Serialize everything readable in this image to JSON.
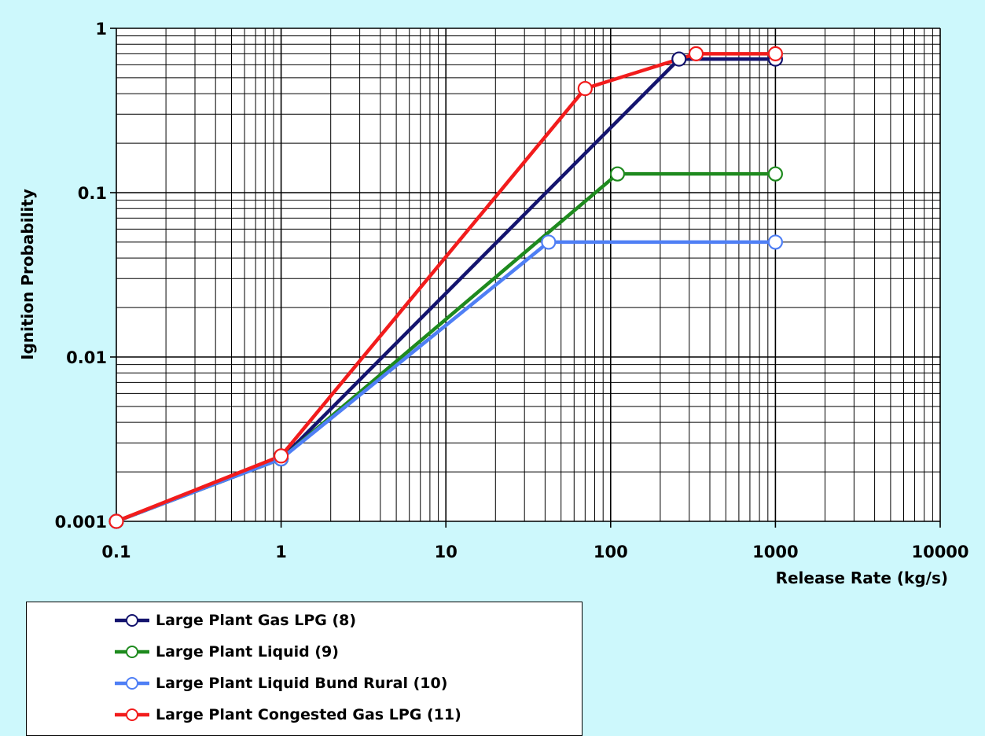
{
  "chart_data": {
    "type": "line",
    "xscale": "log",
    "yscale": "log",
    "xlim": [
      0.1,
      10000
    ],
    "ylim": [
      0.001,
      1
    ],
    "xlabel": "Release Rate (kg/s)",
    "ylabel": "Ignition Probability",
    "grid": true,
    "legend_position": "bottom-left",
    "xticks": [
      "0.1",
      "1",
      "10",
      "100",
      "1000",
      "10000"
    ],
    "yticks": [
      "0.001",
      "0.01",
      "0.1",
      "1"
    ],
    "series": [
      {
        "name": "Large Plant Gas LPG (8)",
        "color": "#14146e",
        "points": [
          [
            0.1,
            0.001
          ],
          [
            1,
            0.0024
          ],
          [
            260,
            0.65
          ],
          [
            1000,
            0.65
          ]
        ]
      },
      {
        "name": "Large Plant Liquid (9)",
        "color": "#1e8a1e",
        "points": [
          [
            0.1,
            0.001
          ],
          [
            1,
            0.0024
          ],
          [
            110,
            0.13
          ],
          [
            1000,
            0.13
          ]
        ]
      },
      {
        "name": "Large Plant Liquid Bund Rural (10)",
        "color": "#4f7ff5",
        "points": [
          [
            0.1,
            0.001
          ],
          [
            1,
            0.0024
          ],
          [
            42,
            0.05
          ],
          [
            1000,
            0.05
          ]
        ]
      },
      {
        "name": "Large Plant Congested Gas LPG (11)",
        "color": "#f21c1c",
        "points": [
          [
            0.1,
            0.001
          ],
          [
            1,
            0.0025
          ],
          [
            70,
            0.43
          ],
          [
            330,
            0.7
          ],
          [
            1000,
            0.7
          ]
        ]
      }
    ]
  }
}
